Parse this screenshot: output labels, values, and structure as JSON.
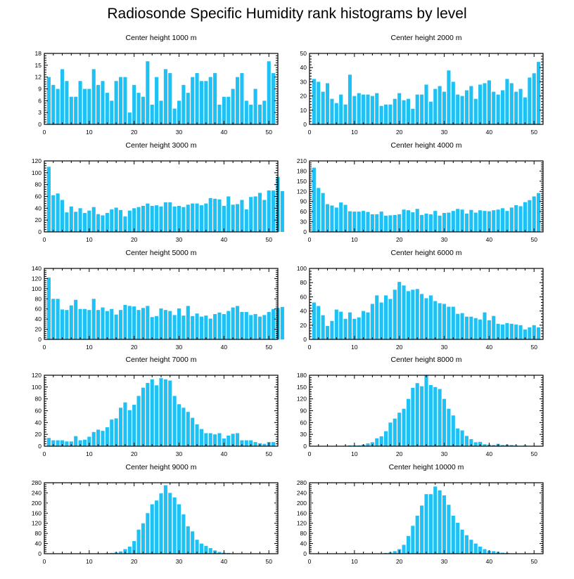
{
  "title": "Radiosonde Specific Humidity rank histograms by level",
  "colors": {
    "bar": "#1ec1f4",
    "axis": "#000000"
  },
  "chart_data": [
    {
      "type": "bar",
      "title": "Center height 1000 m",
      "xlim": [
        0,
        52
      ],
      "ylim": [
        0,
        18
      ],
      "xticks": [
        0,
        10,
        20,
        30,
        40,
        50
      ],
      "yticks": [
        0,
        3,
        6,
        9,
        12,
        15,
        18
      ],
      "values": [
        12,
        10,
        9,
        14,
        11,
        7,
        7,
        11,
        9,
        9,
        14,
        10,
        11,
        8,
        6,
        11,
        12,
        12,
        3,
        10,
        8,
        7,
        16,
        5,
        12,
        6,
        14,
        13,
        4,
        6,
        10,
        8,
        12,
        13,
        11,
        11,
        12,
        13,
        5,
        7,
        7,
        9,
        12,
        13,
        6,
        5,
        9,
        5,
        6,
        16,
        13
      ]
    },
    {
      "type": "bar",
      "title": "Center height 2000 m",
      "xlim": [
        0,
        52
      ],
      "ylim": [
        0,
        50
      ],
      "xticks": [
        0,
        10,
        20,
        30,
        40,
        50
      ],
      "yticks": [
        0,
        10,
        20,
        30,
        40,
        50
      ],
      "values": [
        32,
        30,
        23,
        29,
        18,
        15,
        21,
        14,
        35,
        20,
        22,
        21,
        21,
        20,
        22,
        13,
        14,
        14,
        18,
        22,
        17,
        18,
        11,
        21,
        21,
        28,
        16,
        25,
        27,
        23,
        38,
        30,
        21,
        20,
        24,
        27,
        18,
        28,
        29,
        31,
        23,
        21,
        24,
        32,
        29,
        23,
        25,
        19,
        33,
        36,
        44
      ]
    },
    {
      "type": "bar",
      "title": "Center height 3000 m",
      "xlim": [
        0,
        52
      ],
      "ylim": [
        0,
        120
      ],
      "xticks": [
        0,
        10,
        20,
        30,
        40,
        50
      ],
      "yticks": [
        0,
        20,
        40,
        60,
        80,
        100,
        120
      ],
      "values": [
        110,
        62,
        65,
        54,
        33,
        43,
        34,
        40,
        32,
        36,
        42,
        30,
        28,
        32,
        38,
        41,
        37,
        26,
        36,
        40,
        42,
        44,
        48,
        44,
        45,
        43,
        50,
        50,
        43,
        44,
        42,
        46,
        48,
        48,
        45,
        48,
        57,
        56,
        55,
        44,
        60,
        46,
        47,
        54,
        38,
        59,
        60,
        66,
        54,
        70,
        70,
        93,
        69
      ]
    },
    {
      "type": "bar",
      "title": "Center height 4000 m",
      "xlim": [
        0,
        52
      ],
      "ylim": [
        0,
        210
      ],
      "xticks": [
        0,
        10,
        20,
        30,
        40,
        50
      ],
      "yticks": [
        0,
        30,
        60,
        90,
        120,
        150,
        180,
        210
      ],
      "values": [
        190,
        130,
        115,
        82,
        78,
        72,
        87,
        80,
        61,
        60,
        60,
        62,
        59,
        52,
        52,
        60,
        48,
        49,
        50,
        52,
        66,
        64,
        58,
        68,
        50,
        54,
        52,
        62,
        48,
        56,
        57,
        62,
        68,
        66,
        54,
        65,
        57,
        64,
        62,
        61,
        64,
        66,
        70,
        62,
        72,
        79,
        76,
        88,
        94,
        105,
        115
      ]
    },
    {
      "type": "bar",
      "title": "Center height 5000 m",
      "xlim": [
        0,
        52
      ],
      "ylim": [
        0,
        140
      ],
      "xticks": [
        0,
        10,
        20,
        30,
        40,
        50
      ],
      "yticks": [
        0,
        20,
        40,
        60,
        80,
        100,
        120,
        140
      ],
      "values": [
        122,
        80,
        80,
        59,
        58,
        67,
        78,
        60,
        60,
        58,
        80,
        58,
        63,
        56,
        60,
        49,
        58,
        68,
        66,
        65,
        58,
        62,
        66,
        44,
        46,
        61,
        58,
        56,
        48,
        61,
        47,
        66,
        46,
        51,
        45,
        47,
        41,
        50,
        53,
        50,
        56,
        63,
        66,
        54,
        54,
        48,
        50,
        45,
        48,
        54,
        60,
        62,
        64
      ]
    },
    {
      "type": "bar",
      "title": "Center height 6000 m",
      "xlim": [
        0,
        52
      ],
      "ylim": [
        0,
        100
      ],
      "xticks": [
        0,
        10,
        20,
        30,
        40,
        50
      ],
      "yticks": [
        0,
        20,
        40,
        60,
        80,
        100
      ],
      "values": [
        52,
        47,
        34,
        19,
        26,
        42,
        39,
        29,
        38,
        29,
        31,
        40,
        38,
        50,
        62,
        52,
        62,
        57,
        70,
        81,
        76,
        68,
        70,
        71,
        64,
        58,
        62,
        54,
        51,
        50,
        46,
        46,
        36,
        37,
        32,
        32,
        30,
        28,
        38,
        27,
        33,
        22,
        21,
        23,
        22,
        21,
        20,
        14,
        17,
        20,
        17
      ]
    },
    {
      "type": "bar",
      "title": "Center height 7000 m",
      "xlim": [
        0,
        52
      ],
      "ylim": [
        0,
        120
      ],
      "xticks": [
        0,
        10,
        20,
        30,
        40,
        50
      ],
      "yticks": [
        0,
        20,
        40,
        60,
        80,
        100,
        120
      ],
      "values": [
        14,
        10,
        10,
        10,
        8,
        8,
        17,
        10,
        11,
        16,
        24,
        28,
        26,
        32,
        45,
        47,
        65,
        74,
        61,
        70,
        85,
        99,
        107,
        113,
        103,
        115,
        113,
        111,
        85,
        71,
        65,
        58,
        48,
        37,
        29,
        22,
        22,
        20,
        22,
        13,
        18,
        21,
        22,
        10,
        10,
        10,
        7,
        5,
        4,
        7,
        7
      ]
    },
    {
      "type": "bar",
      "title": "Center height 8000 m",
      "xlim": [
        0,
        52
      ],
      "ylim": [
        0,
        180
      ],
      "xticks": [
        0,
        10,
        20,
        30,
        40,
        50
      ],
      "yticks": [
        0,
        30,
        60,
        90,
        120,
        150,
        180
      ],
      "values": [
        0,
        0,
        0,
        0,
        0,
        0,
        0,
        1,
        2,
        2,
        2,
        4,
        7,
        10,
        20,
        25,
        38,
        60,
        70,
        85,
        95,
        120,
        148,
        160,
        152,
        180,
        155,
        150,
        145,
        120,
        95,
        78,
        45,
        40,
        26,
        18,
        10,
        11,
        5,
        4,
        3,
        6,
        3,
        4,
        3,
        2,
        1,
        2,
        1,
        1,
        1,
        0
      ]
    },
    {
      "type": "bar",
      "title": "Center height 9000 m",
      "xlim": [
        0,
        52
      ],
      "ylim": [
        0,
        280
      ],
      "xticks": [
        0,
        10,
        20,
        30,
        40,
        50
      ],
      "yticks": [
        0,
        40,
        80,
        120,
        160,
        200,
        240,
        280
      ],
      "values": [
        0,
        0,
        0,
        0,
        0,
        0,
        0,
        0,
        0,
        0,
        0,
        0,
        1,
        2,
        3,
        5,
        9,
        18,
        28,
        50,
        95,
        120,
        160,
        195,
        210,
        238,
        270,
        240,
        222,
        195,
        155,
        108,
        88,
        55,
        40,
        31,
        22,
        13,
        7,
        4,
        3,
        1,
        1,
        1,
        0,
        0,
        0,
        0,
        0,
        0,
        0
      ]
    },
    {
      "type": "bar",
      "title": "Center height 10000 m",
      "xlim": [
        0,
        52
      ],
      "ylim": [
        0,
        280
      ],
      "xticks": [
        0,
        10,
        20,
        30,
        40,
        50
      ],
      "yticks": [
        0,
        40,
        80,
        120,
        160,
        200,
        240,
        280
      ],
      "values": [
        0,
        0,
        0,
        0,
        0,
        0,
        0,
        0,
        0,
        0,
        0,
        0,
        0,
        0,
        0,
        1,
        3,
        5,
        10,
        18,
        35,
        70,
        110,
        150,
        190,
        235,
        235,
        265,
        250,
        230,
        193,
        150,
        122,
        95,
        73,
        55,
        40,
        28,
        18,
        12,
        10,
        7,
        4,
        3,
        1,
        1,
        0,
        0,
        0,
        0,
        0
      ]
    }
  ]
}
